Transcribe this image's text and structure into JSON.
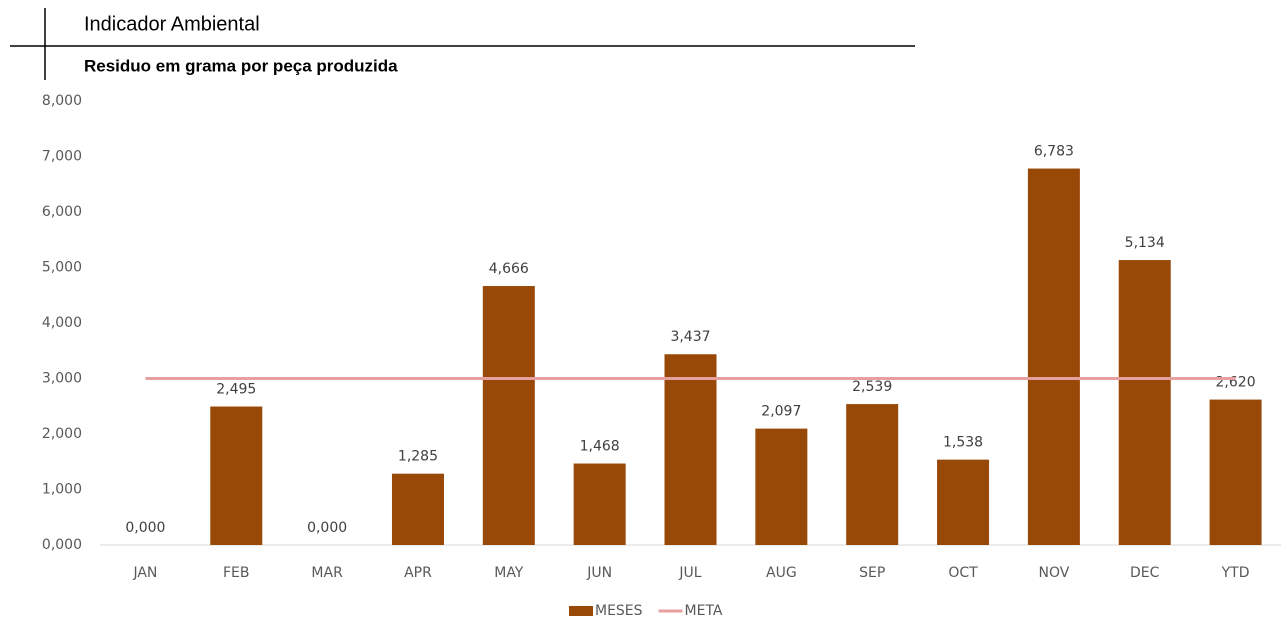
{
  "chart_data": {
    "type": "bar",
    "title": "Indicador Ambiental",
    "subtitle": "Residuo em grama por peça produzida",
    "categories": [
      "JAN",
      "FEB",
      "MAR",
      "APR",
      "MAY",
      "JUN",
      "JUL",
      "AUG",
      "SEP",
      "OCT",
      "NOV",
      "DEC",
      "YTD"
    ],
    "series": [
      {
        "name": "MESES",
        "color": "#984807",
        "type": "bar",
        "values": [
          0,
          2495,
          0,
          1285,
          4666,
          1468,
          3437,
          2097,
          2539,
          1538,
          6783,
          5134,
          2620
        ],
        "value_labels": [
          "0,000",
          "2,495",
          "0,000",
          "1,285",
          "4,666",
          "1,468",
          "3,437",
          "2,097",
          "2,539",
          "1,538",
          "6,783",
          "5,134",
          "2,620"
        ]
      },
      {
        "name": "META",
        "color": "#e6a0a0",
        "type": "line",
        "values": [
          3000,
          3000,
          3000,
          3000,
          3000,
          3000,
          3000,
          3000,
          3000,
          3000,
          3000,
          3000,
          3000
        ]
      }
    ],
    "ylim": [
      0,
      8000
    ],
    "yticks": [
      {
        "value": 0,
        "label": "0,000"
      },
      {
        "value": 1000,
        "label": "1,000"
      },
      {
        "value": 2000,
        "label": "2,000"
      },
      {
        "value": 3000,
        "label": "3,000"
      },
      {
        "value": 4000,
        "label": "4,000"
      },
      {
        "value": 5000,
        "label": "5,000"
      },
      {
        "value": 6000,
        "label": "6,000"
      },
      {
        "value": 7000,
        "label": "7,000"
      },
      {
        "value": 8000,
        "label": "8,000"
      }
    ],
    "grid": false,
    "legend": "bottom"
  }
}
